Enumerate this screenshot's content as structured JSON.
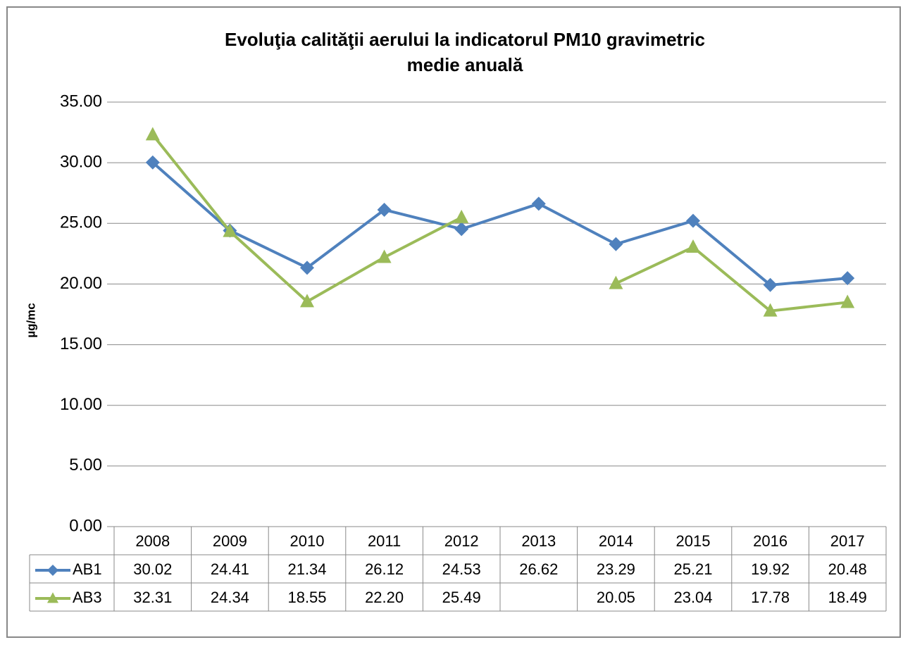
{
  "chart_data": {
    "type": "line",
    "title": [
      "Evoluţia calităţii aerului la indicatorul PM10 gravimetric",
      "medie anuală"
    ],
    "y_label": "µg/mc",
    "categories": [
      "2008",
      "2009",
      "2010",
      "2011",
      "2012",
      "2013",
      "2014",
      "2015",
      "2016",
      "2017"
    ],
    "series": [
      {
        "name": "AB1",
        "color": "#4f81bd",
        "marker": "diamond",
        "values": [
          30.02,
          24.41,
          21.34,
          26.12,
          24.53,
          26.62,
          23.29,
          25.21,
          19.92,
          20.48
        ],
        "value_labels": [
          "30.02",
          "24.41",
          "21.34",
          "26.12",
          "24.53",
          "26.62",
          "23.29",
          "25.21",
          "19.92",
          "20.48"
        ]
      },
      {
        "name": "AB3",
        "color": "#9bbb59",
        "marker": "triangle",
        "values": [
          32.31,
          24.34,
          18.55,
          22.2,
          25.49,
          null,
          20.05,
          23.04,
          17.78,
          18.49
        ],
        "value_labels": [
          "32.31",
          "24.34",
          "18.55",
          "22.20",
          "25.49",
          null,
          "20.05",
          "23.04",
          "17.78",
          "18.49"
        ]
      }
    ],
    "ylim": [
      0,
      35
    ],
    "yticks": [
      {
        "value": 0,
        "label": "0.00"
      },
      {
        "value": 5,
        "label": "5.00"
      },
      {
        "value": 10,
        "label": "10.00"
      },
      {
        "value": 15,
        "label": "15.00"
      },
      {
        "value": 20,
        "label": "20.00"
      },
      {
        "value": 25,
        "label": "25.00"
      },
      {
        "value": 30,
        "label": "30.00"
      },
      {
        "value": 35,
        "label": "35.00"
      }
    ],
    "grid": true
  }
}
